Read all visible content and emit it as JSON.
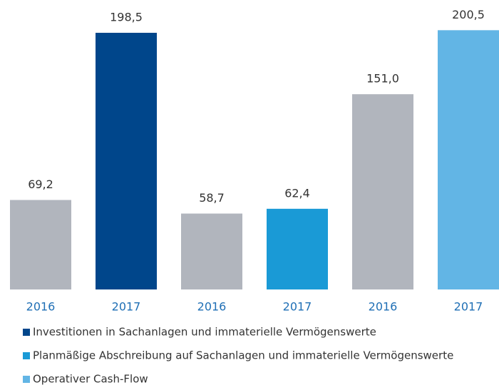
{
  "chart_data": {
    "type": "bar",
    "categories": [
      "2016",
      "2017",
      "2016",
      "2017",
      "2016",
      "2017"
    ],
    "values": [
      69.2,
      198.5,
      58.7,
      62.4,
      151.0,
      200.5
    ],
    "value_labels": [
      "69,2",
      "198,5",
      "58,7",
      "62,4",
      "151,0",
      "200,5"
    ],
    "colors": [
      "#b1b5bd",
      "#00468b",
      "#b1b5bd",
      "#1a9ad6",
      "#b1b5bd",
      "#62b5e5"
    ],
    "ylim": [
      0,
      220
    ],
    "legend": [
      {
        "name": "Investitionen in Sachanlagen und immaterielle Vermögenswerte",
        "color": "#00468b"
      },
      {
        "name": "Planmäßige Abschreibung auf Sachanlagen und immaterielle Vermögenswerte",
        "color": "#1a9ad6"
      },
      {
        "name": "Operativer Cash-Flow",
        "color": "#62b5e5"
      }
    ]
  }
}
